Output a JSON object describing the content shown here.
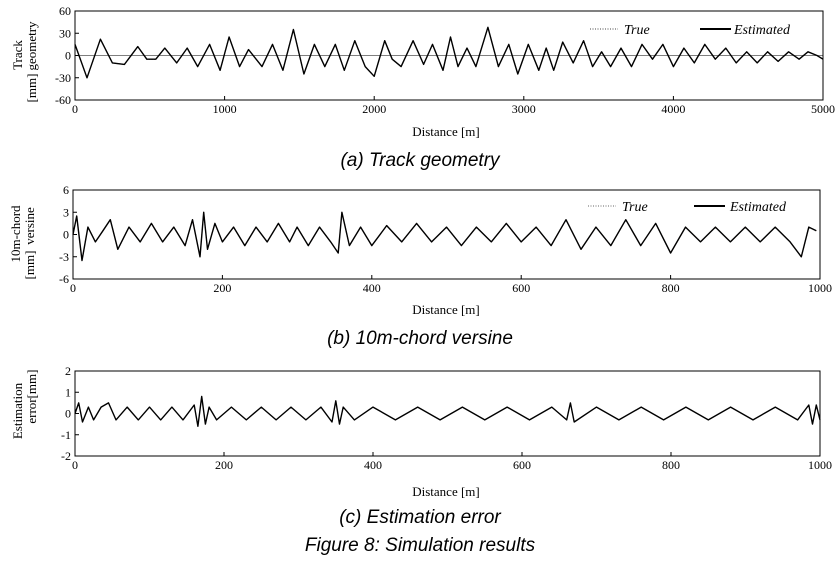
{
  "figure_caption": "Figure 8: Simulation results",
  "chart_data": [
    {
      "type": "line",
      "caption": "(a) Track geometry",
      "xlabel": "Distance [m]",
      "ylabel_lines": [
        "Track",
        "geometry"
      ],
      "ylabel_unit": "[mm]",
      "xlim": [
        0,
        5000
      ],
      "ylim": [
        -60,
        60
      ],
      "xticks": [
        0,
        1000,
        2000,
        3000,
        4000,
        5000
      ],
      "yticks": [
        60,
        30,
        0,
        -30,
        -60
      ],
      "grid": false,
      "legend_position": "top-right",
      "series": [
        {
          "name": "True",
          "style": "dotted",
          "color": "#444444",
          "x": [
            0,
            80,
            170,
            250,
            330,
            420,
            480,
            540,
            600,
            680,
            750,
            820,
            900,
            970,
            1030,
            1100,
            1160,
            1250,
            1320,
            1390,
            1460,
            1530,
            1600,
            1670,
            1740,
            1800,
            1870,
            1940,
            2000,
            2070,
            2120,
            2180,
            2260,
            2330,
            2390,
            2460,
            2510,
            2560,
            2620,
            2680,
            2760,
            2830,
            2900,
            2960,
            3030,
            3100,
            3150,
            3200,
            3260,
            3330,
            3400,
            3460,
            3520,
            3580,
            3650,
            3720,
            3790,
            3860,
            3930,
            4000,
            4070,
            4140,
            4210,
            4280,
            4350,
            4420,
            4490,
            4560,
            4630,
            4700,
            4770,
            4840,
            4900,
            4960,
            5000
          ],
          "y": [
            15,
            -30,
            22,
            -10,
            -12,
            12,
            -5,
            -5,
            10,
            -10,
            10,
            -15,
            15,
            -20,
            25,
            -15,
            8,
            -15,
            15,
            -20,
            35,
            -25,
            15,
            -15,
            15,
            -20,
            20,
            -15,
            -28,
            20,
            -5,
            -15,
            20,
            -12,
            15,
            -20,
            25,
            -15,
            10,
            -15,
            38,
            -15,
            15,
            -25,
            15,
            -20,
            10,
            -20,
            18,
            -10,
            20,
            -15,
            5,
            -15,
            10,
            -15,
            15,
            -5,
            15,
            -15,
            10,
            -10,
            15,
            -5,
            10,
            -10,
            5,
            -10,
            5,
            -8,
            5,
            -5,
            5,
            0,
            -5
          ]
        },
        {
          "name": "Estimated",
          "style": "solid",
          "color": "#000000",
          "x": [
            0,
            80,
            170,
            250,
            330,
            420,
            480,
            540,
            600,
            680,
            750,
            820,
            900,
            970,
            1030,
            1100,
            1160,
            1250,
            1320,
            1390,
            1460,
            1530,
            1600,
            1670,
            1740,
            1800,
            1870,
            1940,
            2000,
            2070,
            2120,
            2180,
            2260,
            2330,
            2390,
            2460,
            2510,
            2560,
            2620,
            2680,
            2760,
            2830,
            2900,
            2960,
            3030,
            3100,
            3150,
            3200,
            3260,
            3330,
            3400,
            3460,
            3520,
            3580,
            3650,
            3720,
            3790,
            3860,
            3930,
            4000,
            4070,
            4140,
            4210,
            4280,
            4350,
            4420,
            4490,
            4560,
            4630,
            4700,
            4770,
            4840,
            4900,
            4960,
            5000
          ],
          "y": [
            15,
            -30,
            22,
            -10,
            -12,
            12,
            -5,
            -5,
            10,
            -10,
            10,
            -15,
            15,
            -20,
            25,
            -15,
            8,
            -15,
            15,
            -20,
            35,
            -25,
            15,
            -15,
            15,
            -20,
            20,
            -15,
            -28,
            20,
            -5,
            -15,
            20,
            -12,
            15,
            -20,
            25,
            -15,
            10,
            -15,
            38,
            -15,
            15,
            -25,
            15,
            -20,
            10,
            -20,
            18,
            -10,
            20,
            -15,
            5,
            -15,
            10,
            -15,
            15,
            -5,
            15,
            -15,
            10,
            -10,
            15,
            -5,
            10,
            -10,
            5,
            -10,
            5,
            -8,
            5,
            -5,
            5,
            0,
            -5
          ]
        }
      ]
    },
    {
      "type": "line",
      "caption": "(b) 10m-chord versine",
      "xlabel": "Distance [m]",
      "ylabel_lines": [
        "10m-chord",
        "versine"
      ],
      "ylabel_unit": "[mm]",
      "xlim": [
        0,
        1000
      ],
      "ylim": [
        -6,
        6
      ],
      "xticks": [
        0,
        200,
        400,
        600,
        800,
        1000
      ],
      "yticks": [
        6,
        3,
        0,
        -3,
        -6
      ],
      "grid": false,
      "legend_position": "top-right",
      "series": [
        {
          "name": "True",
          "style": "dotted",
          "color": "#a05050",
          "x": [
            0,
            5,
            12,
            20,
            30,
            40,
            50,
            60,
            75,
            90,
            105,
            120,
            135,
            150,
            160,
            170,
            175,
            180,
            190,
            200,
            215,
            230,
            245,
            260,
            275,
            290,
            300,
            315,
            330,
            345,
            355,
            360,
            370,
            385,
            400,
            420,
            440,
            460,
            480,
            500,
            520,
            540,
            560,
            580,
            600,
            620,
            640,
            660,
            680,
            700,
            720,
            740,
            760,
            780,
            800,
            820,
            840,
            860,
            880,
            900,
            920,
            940,
            960,
            975,
            985,
            995
          ],
          "y": [
            0,
            2.5,
            -3.5,
            1,
            -1,
            0.5,
            2,
            -2,
            1,
            -1,
            1.5,
            -1,
            1,
            -1.5,
            2,
            -3,
            3,
            -2,
            1.5,
            -1,
            1,
            -1.5,
            1,
            -1,
            1.5,
            -1,
            1,
            -1.5,
            1,
            -1,
            -2.5,
            3,
            -1.5,
            1,
            -1.5,
            1.2,
            -1,
            1.5,
            -1,
            1,
            -1.5,
            1,
            -1,
            1.5,
            -1,
            1,
            -1.5,
            2,
            -2,
            1,
            -1.5,
            2,
            -1.5,
            1.5,
            -2.5,
            1,
            -1,
            1,
            -1,
            1,
            -1,
            1,
            -1,
            -3,
            1,
            0.5
          ]
        },
        {
          "name": "Estimated",
          "style": "solid",
          "color": "#000000",
          "x": [
            0,
            5,
            12,
            20,
            30,
            40,
            50,
            60,
            75,
            90,
            105,
            120,
            135,
            150,
            160,
            170,
            175,
            180,
            190,
            200,
            215,
            230,
            245,
            260,
            275,
            290,
            300,
            315,
            330,
            345,
            355,
            360,
            370,
            385,
            400,
            420,
            440,
            460,
            480,
            500,
            520,
            540,
            560,
            580,
            600,
            620,
            640,
            660,
            680,
            700,
            720,
            740,
            760,
            780,
            800,
            820,
            840,
            860,
            880,
            900,
            920,
            940,
            960,
            975,
            985,
            995
          ],
          "y": [
            0,
            2.5,
            -3.5,
            1,
            -1,
            0.5,
            2,
            -2,
            1,
            -1,
            1.5,
            -1,
            1,
            -1.5,
            2,
            -3,
            3,
            -2,
            1.5,
            -1,
            1,
            -1.5,
            1,
            -1,
            1.5,
            -1,
            1,
            -1.5,
            1,
            -1,
            -2.5,
            3,
            -1.5,
            1,
            -1.5,
            1.2,
            -1,
            1.5,
            -1,
            1,
            -1.5,
            1,
            -1,
            1.5,
            -1,
            1,
            -1.5,
            2,
            -2,
            1,
            -1.5,
            2,
            -1.5,
            1.5,
            -2.5,
            1,
            -1,
            1,
            -1,
            1,
            -1,
            1,
            -1,
            -3,
            1,
            0.5
          ]
        }
      ]
    },
    {
      "type": "line",
      "caption": "(c) Estimation error",
      "xlabel": "Distance [m]",
      "ylabel_lines": [
        "Estimation",
        "error"
      ],
      "ylabel_unit": "[mm]",
      "xlim": [
        0,
        1000
      ],
      "ylim": [
        -2,
        2
      ],
      "xticks": [
        0,
        200,
        400,
        600,
        800,
        1000
      ],
      "yticks": [
        2,
        1,
        0,
        -1,
        -2
      ],
      "grid": false,
      "series": [
        {
          "name": "",
          "style": "solid",
          "color": "#000000",
          "x": [
            0,
            5,
            10,
            18,
            25,
            35,
            45,
            55,
            70,
            85,
            100,
            115,
            130,
            145,
            160,
            165,
            170,
            175,
            180,
            190,
            210,
            230,
            250,
            270,
            290,
            310,
            330,
            345,
            350,
            355,
            360,
            375,
            400,
            430,
            460,
            490,
            520,
            550,
            580,
            610,
            640,
            660,
            665,
            670,
            700,
            730,
            760,
            790,
            820,
            850,
            880,
            910,
            940,
            970,
            985,
            990,
            995,
            1000
          ],
          "y": [
            0,
            0.5,
            -0.4,
            0.3,
            -0.3,
            0.3,
            0.5,
            -0.3,
            0.3,
            -0.3,
            0.3,
            -0.3,
            0.3,
            -0.3,
            0.4,
            -0.6,
            0.8,
            -0.5,
            0.3,
            -0.3,
            0.3,
            -0.3,
            0.3,
            -0.3,
            0.3,
            -0.3,
            0.3,
            -0.4,
            0.6,
            -0.5,
            0.3,
            -0.3,
            0.3,
            -0.3,
            0.3,
            -0.3,
            0.3,
            -0.3,
            0.3,
            -0.3,
            0.3,
            -0.3,
            0.5,
            -0.4,
            0.3,
            -0.3,
            0.3,
            -0.3,
            0.3,
            -0.3,
            0.3,
            -0.3,
            0.3,
            -0.3,
            0.4,
            -0.5,
            0.4,
            -0.3
          ]
        }
      ]
    }
  ]
}
